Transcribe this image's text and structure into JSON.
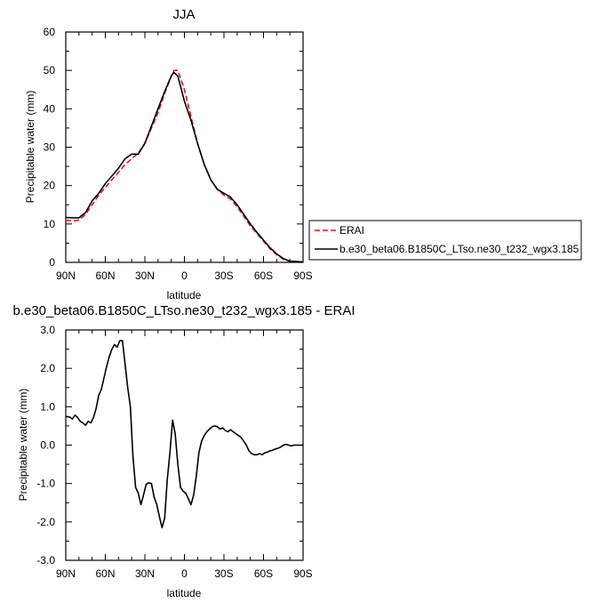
{
  "chart_data": [
    {
      "type": "line",
      "title": "JJA",
      "xlabel": "latitude",
      "ylabel": "Precipitable water (mm)",
      "xlim": [
        90,
        -90
      ],
      "ylim": [
        0,
        60
      ],
      "x_ticks": [
        90,
        60,
        30,
        0,
        -30,
        -60,
        -90
      ],
      "x_tick_labels": [
        "90N",
        "60N",
        "30N",
        "0",
        "30S",
        "60S",
        "90S"
      ],
      "y_ticks": [
        0,
        10,
        20,
        30,
        40,
        50,
        60
      ],
      "y_tick_labels": [
        "0",
        "10",
        "20",
        "30",
        "40",
        "50",
        "60"
      ],
      "legend_position": "right",
      "series": [
        {
          "name": "ERAI",
          "color": "#e8141c",
          "dash": "dashed",
          "x": [
            90,
            85,
            80,
            75,
            70,
            65,
            60,
            55,
            50,
            45,
            40,
            35,
            30,
            25,
            20,
            15,
            10,
            8,
            5,
            0,
            -5,
            -10,
            -15,
            -20,
            -25,
            -30,
            -35,
            -40,
            -45,
            -50,
            -55,
            -60,
            -65,
            -70,
            -75,
            -80,
            -85,
            -90
          ],
          "y": [
            11,
            10.8,
            11,
            12.5,
            15,
            17.5,
            19.5,
            21.5,
            23.5,
            25.5,
            27,
            28.5,
            31,
            35,
            39,
            44,
            48.5,
            50,
            50,
            45,
            38,
            31,
            25.5,
            21.5,
            19,
            17.5,
            16.5,
            14.5,
            12,
            9.5,
            7.5,
            5.5,
            3.5,
            2,
            0.8,
            0.3,
            0.2,
            0.1
          ]
        },
        {
          "name": "b.e30_beta06.B1850C_LTso.ne30_t232_wgx3.185",
          "color": "#000000",
          "dash": "solid",
          "x": [
            90,
            85,
            80,
            75,
            70,
            65,
            60,
            55,
            50,
            45,
            40,
            35,
            30,
            25,
            20,
            15,
            10,
            8,
            5,
            0,
            -5,
            -10,
            -15,
            -20,
            -25,
            -30,
            -35,
            -40,
            -45,
            -50,
            -55,
            -60,
            -65,
            -70,
            -75,
            -80,
            -85,
            -90
          ],
          "y": [
            11.7,
            11.6,
            11.6,
            13,
            16,
            18,
            20.5,
            22.5,
            24.5,
            27,
            28.2,
            28.2,
            31,
            35.5,
            40,
            44.5,
            48.5,
            49.5,
            48.5,
            42,
            37,
            31,
            25.5,
            21.5,
            19,
            18,
            17,
            15,
            12.5,
            10,
            7.8,
            5.8,
            3.8,
            2.2,
            1,
            0.3,
            0.2,
            0.1
          ]
        }
      ]
    },
    {
      "type": "line",
      "title": "b.e30_beta06.B1850C_LTso.ne30_t232_wgx3.185 - ERAI",
      "xlabel": "latitude",
      "ylabel": "Precipitable water (mm)",
      "xlim": [
        90,
        -90
      ],
      "ylim": [
        -3,
        3
      ],
      "x_ticks": [
        90,
        60,
        30,
        0,
        -30,
        -60,
        -90
      ],
      "x_tick_labels": [
        "90N",
        "60N",
        "30N",
        "0",
        "30S",
        "60S",
        "90S"
      ],
      "y_ticks": [
        -3,
        -2,
        -1,
        0,
        1,
        2,
        3
      ],
      "y_tick_labels": [
        "-3.0",
        "-2.0",
        "-1.0",
        "0.0",
        "1.0",
        "2.0",
        "3.0"
      ],
      "series": [
        {
          "color": "#000000",
          "dash": "solid",
          "x": [
            90,
            87,
            85,
            83,
            81,
            79,
            77,
            75,
            73,
            71,
            69,
            67,
            65,
            63,
            61,
            59,
            57,
            55,
            53,
            51,
            49,
            47,
            45,
            43,
            41,
            39,
            37,
            35,
            33,
            31,
            29,
            27,
            25,
            23,
            21,
            19,
            17,
            15,
            13,
            11,
            9,
            7,
            5,
            3,
            1,
            -1,
            -3,
            -5,
            -7,
            -9,
            -11,
            -13,
            -15,
            -17,
            -19,
            -21,
            -23,
            -25,
            -27,
            -29,
            -31,
            -33,
            -35,
            -37,
            -39,
            -41,
            -43,
            -45,
            -47,
            -49,
            -51,
            -53,
            -55,
            -57,
            -59,
            -61,
            -63,
            -65,
            -67,
            -69,
            -71,
            -73,
            -75,
            -77,
            -79,
            -81,
            -83,
            -85,
            -87,
            -90
          ],
          "y": [
            0.75,
            0.73,
            0.68,
            0.78,
            0.72,
            0.62,
            0.58,
            0.52,
            0.62,
            0.58,
            0.72,
            0.95,
            1.3,
            1.45,
            1.75,
            2.05,
            2.3,
            2.5,
            2.62,
            2.55,
            2.72,
            2.72,
            2.1,
            1.5,
            1.0,
            -0.3,
            -1.1,
            -1.25,
            -1.55,
            -1.3,
            -1.02,
            -0.98,
            -1.0,
            -1.35,
            -1.55,
            -1.85,
            -2.15,
            -1.9,
            -0.9,
            -0.2,
            0.65,
            0.3,
            -0.5,
            -1.1,
            -1.2,
            -1.25,
            -1.4,
            -1.55,
            -1.3,
            -0.8,
            -0.2,
            0.1,
            0.25,
            0.35,
            0.42,
            0.48,
            0.5,
            0.48,
            0.42,
            0.45,
            0.38,
            0.35,
            0.4,
            0.35,
            0.3,
            0.25,
            0.2,
            0.1,
            0.0,
            -0.15,
            -0.22,
            -0.25,
            -0.25,
            -0.22,
            -0.25,
            -0.2,
            -0.18,
            -0.15,
            -0.13,
            -0.1,
            -0.08,
            -0.05,
            0.0,
            0.02,
            0.0,
            -0.02,
            0.0,
            0.0,
            0.0,
            0.0
          ]
        }
      ]
    }
  ]
}
